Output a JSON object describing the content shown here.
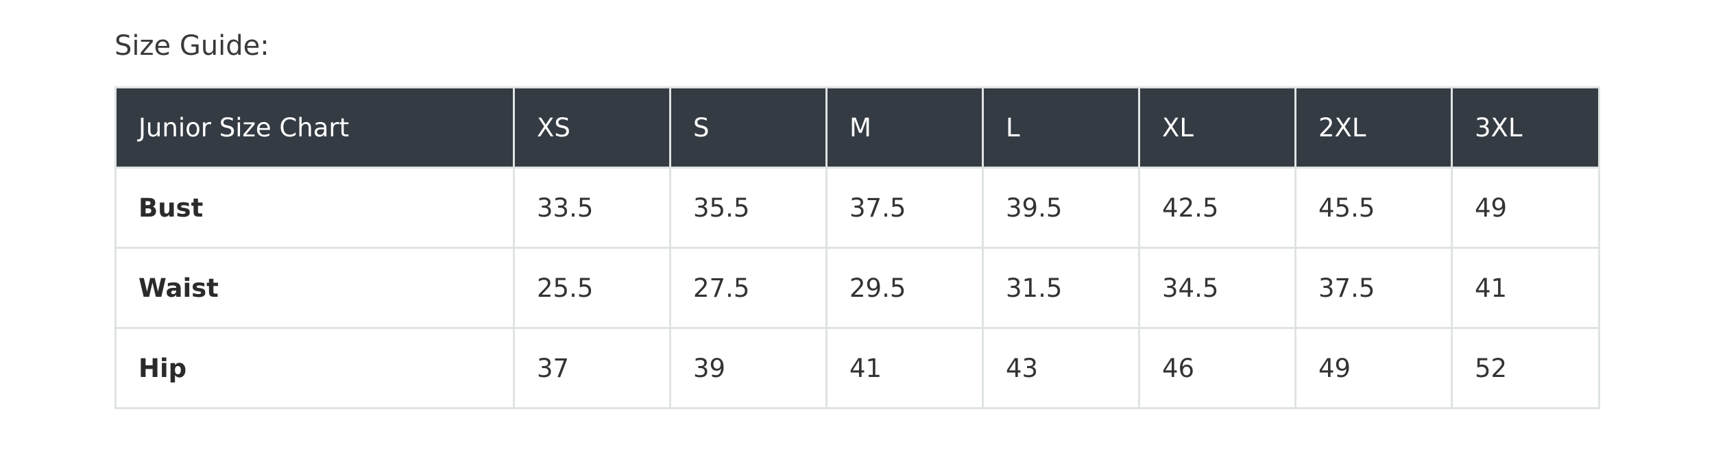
{
  "header": {
    "title": "Size Guide:"
  },
  "table": {
    "columns": [
      "Junior Size Chart",
      "XS",
      "S",
      "M",
      "L",
      "XL",
      "2XL",
      "3XL"
    ],
    "rows": [
      [
        "Bust",
        "33.5",
        "35.5",
        "37.5",
        "39.5",
        "42.5",
        "45.5",
        "49"
      ],
      [
        "Waist",
        "25.5",
        "27.5",
        "29.5",
        "31.5",
        "34.5",
        "37.5",
        "41"
      ],
      [
        "Hip",
        "37",
        "39",
        "41",
        "43",
        "46",
        "49",
        "52"
      ]
    ]
  }
}
